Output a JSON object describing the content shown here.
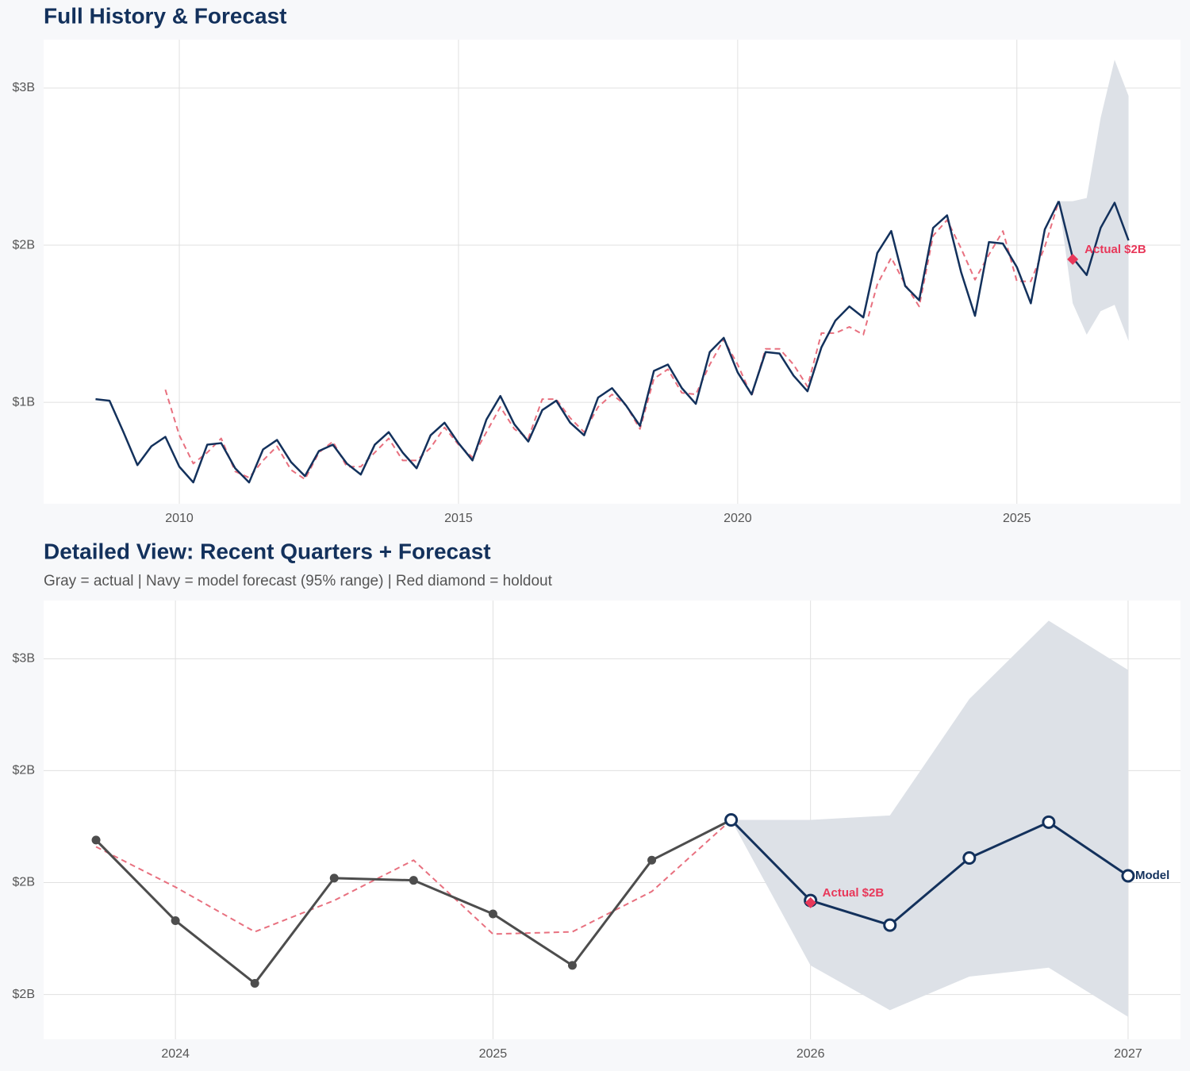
{
  "chart_data": [
    {
      "type": "line",
      "title": "Full History & Forecast",
      "xlim": [
        2007.57,
        2027.93
      ],
      "xticks": [
        2010,
        2015,
        2020,
        2025
      ],
      "ylim": [
        0.354,
        3.308
      ],
      "yticks": [
        {
          "value": 1,
          "label": "$1B"
        },
        {
          "value": 2,
          "label": "$2B"
        },
        {
          "value": 3,
          "label": "$3B"
        }
      ],
      "grid": true,
      "x": [
        2008.5,
        2008.75,
        2009,
        2009.25,
        2009.5,
        2009.75,
        2010,
        2010.25,
        2010.5,
        2010.75,
        2011,
        2011.25,
        2011.5,
        2011.75,
        2012,
        2012.25,
        2012.5,
        2012.75,
        2013,
        2013.25,
        2013.5,
        2013.75,
        2014,
        2014.25,
        2014.5,
        2014.75,
        2015,
        2015.25,
        2015.5,
        2015.75,
        2016,
        2016.25,
        2016.5,
        2016.75,
        2017,
        2017.25,
        2017.5,
        2017.75,
        2018,
        2018.25,
        2018.5,
        2018.75,
        2019,
        2019.25,
        2019.5,
        2019.75,
        2020,
        2020.25,
        2020.5,
        2020.75,
        2021,
        2021.25,
        2021.5,
        2021.75,
        2022,
        2022.25,
        2022.5,
        2022.75,
        2023,
        2023.25,
        2023.5,
        2023.75,
        2024,
        2024.25,
        2024.5,
        2024.75,
        2025,
        2025.25,
        2025.5,
        2025.75
      ],
      "band": {
        "color": "#dde1e7",
        "x": [
          2025.75,
          2026,
          2026.25,
          2026.5,
          2026.75,
          2027
        ],
        "upper": [
          2.28,
          2.28,
          2.3,
          2.81,
          3.18,
          2.95
        ],
        "lower": [
          2.28,
          1.63,
          1.43,
          1.58,
          1.62,
          1.39
        ]
      },
      "series": [
        {
          "color": "#e8707f",
          "dash": true,
          "values": [
            null,
            null,
            null,
            null,
            null,
            1.08,
            0.79,
            0.61,
            0.68,
            0.77,
            0.56,
            0.52,
            0.63,
            0.72,
            0.57,
            0.51,
            0.68,
            0.75,
            0.59,
            0.59,
            0.68,
            0.77,
            0.63,
            0.63,
            0.71,
            0.84,
            0.73,
            0.65,
            0.81,
            0.97,
            0.83,
            0.77,
            1.02,
            1.02,
            0.9,
            0.81,
            0.97,
            1.05,
            0.98,
            0.83,
            1.15,
            1.21,
            1.06,
            1.05,
            1.24,
            1.4,
            1.24,
            1.04,
            1.34,
            1.34,
            1.24,
            1.1,
            1.44,
            1.44,
            1.48,
            1.43,
            1.75,
            1.92,
            1.75,
            1.61,
            2.06,
            2.16,
            1.98,
            1.78,
            1.94,
            2.09,
            1.77,
            1.77,
            1.99,
            2.28
          ]
        },
        {
          "color": "#13315c",
          "values": [
            1.02,
            1.01,
            0.81,
            0.6,
            0.72,
            0.78,
            0.59,
            0.49,
            0.73,
            0.74,
            0.58,
            0.49,
            0.7,
            0.76,
            0.62,
            0.53,
            0.69,
            0.73,
            0.61,
            0.54,
            0.73,
            0.81,
            0.68,
            0.58,
            0.79,
            0.87,
            0.74,
            0.63,
            0.89,
            1.04,
            0.86,
            0.75,
            0.95,
            1.01,
            0.87,
            0.79,
            1.03,
            1.09,
            0.98,
            0.85,
            1.2,
            1.24,
            1.09,
            0.99,
            1.32,
            1.41,
            1.19,
            1.05,
            1.32,
            1.31,
            1.17,
            1.07,
            1.35,
            1.52,
            1.61,
            1.54,
            1.95,
            2.09,
            1.74,
            1.65,
            2.11,
            2.19,
            1.83,
            1.55,
            2.02,
            2.01,
            1.86,
            1.63,
            2.1,
            2.28
          ]
        },
        {
          "color": "#13315c",
          "x": [
            2025.75,
            2026,
            2026.25,
            2026.5,
            2026.75,
            2027
          ],
          "values": [
            2.28,
            1.92,
            1.81,
            2.11,
            2.27,
            2.03
          ]
        }
      ],
      "holdout": {
        "x": 2026,
        "value": 1.91,
        "label": "Actual $2B",
        "color": "#e8385a"
      }
    },
    {
      "type": "line",
      "title": "Detailed View: Recent Quarters + Forecast",
      "subtitle": "Gray = actual  |  Navy = model forecast (95% range)  |  Red diamond = holdout",
      "xlim": [
        2023.585,
        2027.165
      ],
      "xticks": [
        2024,
        2025,
        2026,
        2027
      ],
      "ylim": [
        1.3,
        3.26
      ],
      "yticks": [
        {
          "value": 1.5,
          "label": "$2B"
        },
        {
          "value": 2,
          "label": "$2B"
        },
        {
          "value": 2.5,
          "label": "$2B"
        },
        {
          "value": 3,
          "label": "$3B"
        }
      ],
      "grid": true,
      "x": [
        2023.75,
        2024,
        2024.25,
        2024.5,
        2024.75,
        2025,
        2025.25,
        2025.5,
        2025.75
      ],
      "band": {
        "color": "#dde1e7",
        "x": [
          2025.75,
          2026,
          2026.25,
          2026.5,
          2026.75,
          2027
        ],
        "upper": [
          2.28,
          2.28,
          2.3,
          2.82,
          3.17,
          2.95
        ],
        "lower": [
          2.28,
          1.63,
          1.43,
          1.58,
          1.62,
          1.4
        ]
      },
      "series": [
        {
          "color": "#e8707f",
          "dash": true,
          "values": [
            2.16,
            1.98,
            1.78,
            1.92,
            2.1,
            1.77,
            1.78,
            1.96,
            2.28
          ]
        },
        {
          "color": "#4d4d4d",
          "markers": "filled",
          "values": [
            2.19,
            1.83,
            1.55,
            2.02,
            2.01,
            1.86,
            1.63,
            2.1,
            2.28
          ]
        },
        {
          "color": "#13315c",
          "markers": "hollow",
          "end_label": "Model",
          "x": [
            2025.75,
            2026,
            2026.25,
            2026.5,
            2026.75,
            2027
          ],
          "values": [
            2.28,
            1.92,
            1.81,
            2.11,
            2.27,
            2.03
          ]
        }
      ],
      "holdout": {
        "x": 2026,
        "value": 1.91,
        "label": "Actual $2B",
        "color": "#e8385a"
      }
    }
  ]
}
